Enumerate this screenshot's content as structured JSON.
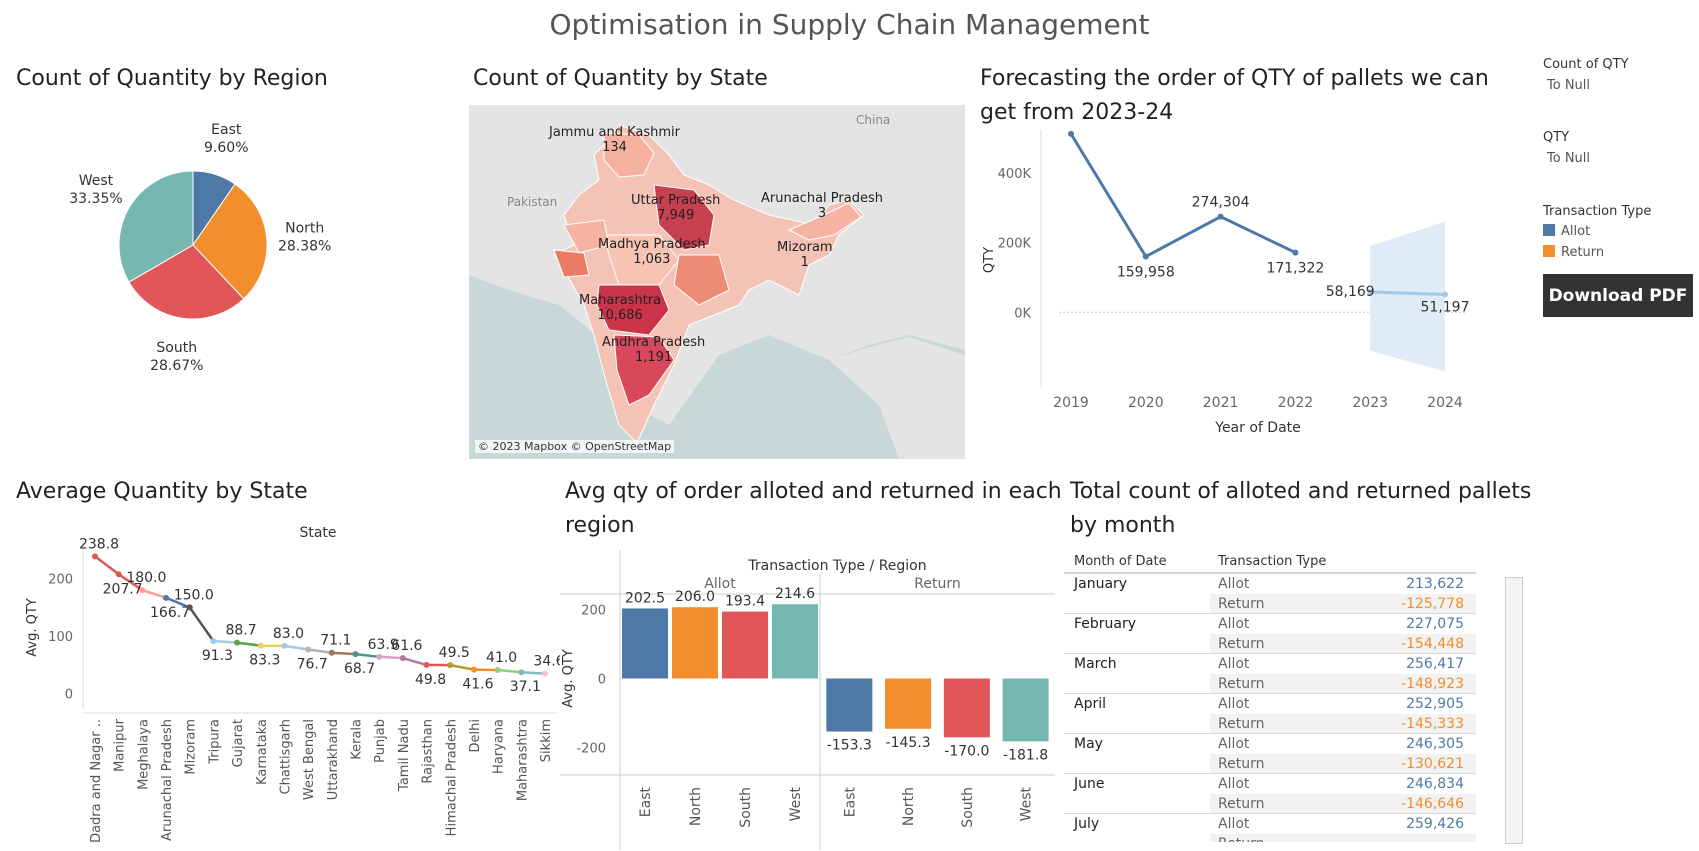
{
  "page": {
    "title": "Optimisation in Supply Chain Management",
    "download_label": "Download PDF"
  },
  "legend": {
    "count_qty_title": "Count of QTY",
    "count_qty_value": "To Null",
    "qty_title": "QTY",
    "qty_value": "To Null",
    "transaction_title": "Transaction Type",
    "items": [
      {
        "label": "Allot",
        "color": "#4e79a7"
      },
      {
        "label": "Return",
        "color": "#f28e2b"
      }
    ]
  },
  "colors": {
    "east": "#4e79a7",
    "north": "#f28e2b",
    "south": "#e15759",
    "west": "#76b7b2",
    "allot_text": "#4e79a7",
    "return_text": "#f28e2b",
    "forecast_line": "#a7c7e7",
    "forecast_band": "#dce9f5"
  },
  "map": {
    "title": "Count of Quantity by State",
    "attribution": "© 2023 Mapbox © OpenStreetMap",
    "countries": [
      "China",
      "Pakistan"
    ],
    "states": [
      {
        "name": "Jammu and Kashmir",
        "value": "134"
      },
      {
        "name": "Uttar Pradesh",
        "value": "7,949"
      },
      {
        "name": "Arunachal Pradesh",
        "value": "3"
      },
      {
        "name": "Madhya Pradesh",
        "value": "1,063"
      },
      {
        "name": "Mizoram",
        "value": "1"
      },
      {
        "name": "Maharashtra",
        "value": "10,686"
      },
      {
        "name": "Andhra Pradesh",
        "value": "1,191"
      }
    ]
  },
  "table": {
    "title": "Total count of alloted and returned pallets by month",
    "headers": [
      "Month of Date",
      "Transaction Type"
    ],
    "rows": [
      {
        "month": "January",
        "allot": "213,622",
        "return": "-125,778"
      },
      {
        "month": "February",
        "allot": "227,075",
        "return": "-154,448"
      },
      {
        "month": "March",
        "allot": "256,417",
        "return": "-148,923"
      },
      {
        "month": "April",
        "allot": "252,905",
        "return": "-145,333"
      },
      {
        "month": "May",
        "allot": "246,305",
        "return": "-130,621"
      },
      {
        "month": "June",
        "allot": "246,834",
        "return": "-146,646"
      },
      {
        "month": "July",
        "allot": "259,426",
        "return": ""
      }
    ],
    "allot_label": "Allot",
    "return_label": "Return"
  },
  "chart_data": [
    {
      "id": "region_pie",
      "type": "pie",
      "title": "Count of Quantity by Region",
      "categories": [
        "East",
        "North",
        "South",
        "West"
      ],
      "values": [
        9.6,
        28.38,
        28.67,
        33.35
      ],
      "labels": [
        "9.60%",
        "28.38%",
        "28.67%",
        "33.35%"
      ]
    },
    {
      "id": "forecast_line",
      "type": "line",
      "title": "Forecasting the order of QTY of pallets we can get from 2023-24",
      "xlabel": "Year of Date",
      "ylabel": "QTY",
      "x": [
        2019,
        2020,
        2021,
        2022,
        2023,
        2024
      ],
      "series": [
        {
          "values": [
            511850,
            159958,
            274304,
            171322,
            null,
            null
          ],
          "labels": [
            "511,850",
            "159,958",
            "274,304",
            "171,322",
            "",
            ""
          ]
        },
        {
          "values": [
            null,
            null,
            null,
            null,
            58169,
            51197
          ],
          "labels": [
            "",
            "",
            "",
            "",
            "58,169",
            "51,197"
          ],
          "band_low": [
            null,
            null,
            null,
            null,
            -110000,
            -170000
          ],
          "band_high": [
            null,
            null,
            null,
            null,
            190000,
            260000
          ]
        }
      ],
      "ylim": [
        -200000,
        500000
      ],
      "yticks": [
        "0K",
        "200K",
        "400K"
      ]
    },
    {
      "id": "avg_state_line",
      "type": "line",
      "title": "Average Quantity by State",
      "header": "State",
      "ylabel": "Avg. QTY",
      "ylim": [
        -20,
        250
      ],
      "yticks": [
        0,
        100,
        200
      ],
      "categories": [
        "Dadra and Nagar ..",
        "Manipur",
        "Meghalaya",
        "Arunachal Pradesh",
        "Mizoram",
        "Tripura",
        "Gujarat",
        "Karnataka",
        "Chattisgarh",
        "West Bengal",
        "Uttarakhand",
        "Kerala",
        "Punjab",
        "Tamil Nadu",
        "Rajasthan",
        "Himachal Pradesh",
        "Delhi",
        "Haryana",
        "Maharashtra",
        "Sikkim"
      ],
      "values": [
        238.8,
        207.7,
        180.0,
        166.7,
        150.0,
        91.3,
        88.7,
        83.3,
        83.0,
        76.7,
        71.1,
        68.7,
        63.9,
        61.6,
        49.8,
        49.5,
        41.6,
        41.0,
        37.1,
        34.6
      ],
      "labels": [
        "238.8",
        "207.7",
        "180.0",
        "166.7",
        "150.0",
        "91.3",
        "88.7",
        "83.3",
        "83.0",
        "76.7",
        "71.1",
        "68.7",
        "63.9",
        "61.6",
        "49.8",
        "49.5",
        "41.6",
        "41.0",
        "37.1",
        "34.6"
      ],
      "colors": [
        "#e15759",
        "#e15759",
        "#ff9d9a",
        "#4e79a7",
        "#59504e",
        "#a0cbe8",
        "#59a14f",
        "#f1ce63",
        "#a0cbe8",
        "#bab0ac",
        "#9d7660",
        "#499894",
        "#d4a6c8",
        "#b07aa1",
        "#e15759",
        "#b6992d",
        "#f28e2b",
        "#8cd17d",
        "#86bcb6",
        "#fabfd2"
      ]
    },
    {
      "id": "avg_allot_return_bar",
      "type": "bar",
      "title": "Avg qty of order alloted and returned in each region",
      "header": "Transaction Type / Region",
      "ylabel": "Avg. QTY",
      "groups": [
        "Allot",
        "Return"
      ],
      "categories": [
        "East",
        "North",
        "South",
        "West"
      ],
      "series": [
        {
          "name": "Allot",
          "values": [
            202.5,
            206.0,
            193.4,
            214.6
          ]
        },
        {
          "name": "Return",
          "values": [
            -153.3,
            -145.3,
            -170.0,
            -181.8
          ]
        }
      ],
      "ylim": [
        -250,
        250
      ],
      "yticks": [
        -200,
        0,
        200
      ]
    }
  ]
}
